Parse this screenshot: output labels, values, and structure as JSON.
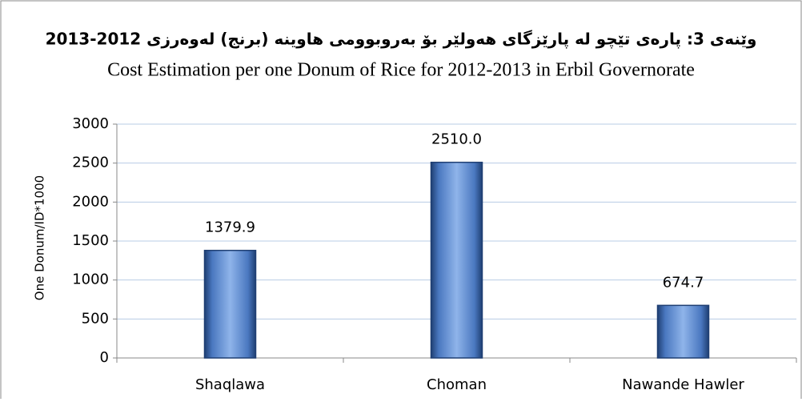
{
  "chart_data": {
    "type": "bar",
    "title": "وێنەی 3: پارەی تێچو لە پارێزگای هەولێر بۆ بەروبوومی هاوینە (برنج) لەوەرزی 2012-2013",
    "subtitle": "Cost Estimation per one Donum of Rice for 2012-2013 in Erbil Governorate",
    "y_label": "One Donum/ID*1000",
    "categories": [
      "Shaqlawa",
      "Choman",
      "Nawande Hawler"
    ],
    "values": [
      1379.9,
      2510.0,
      674.7
    ],
    "value_labels": [
      "1379.9",
      "2510.0",
      "674.7"
    ],
    "color": "#4f81bd",
    "ylim": [
      0,
      3000
    ],
    "yticks": [
      0,
      500,
      1000,
      1500,
      2000,
      2500,
      3000
    ],
    "grid": true
  }
}
